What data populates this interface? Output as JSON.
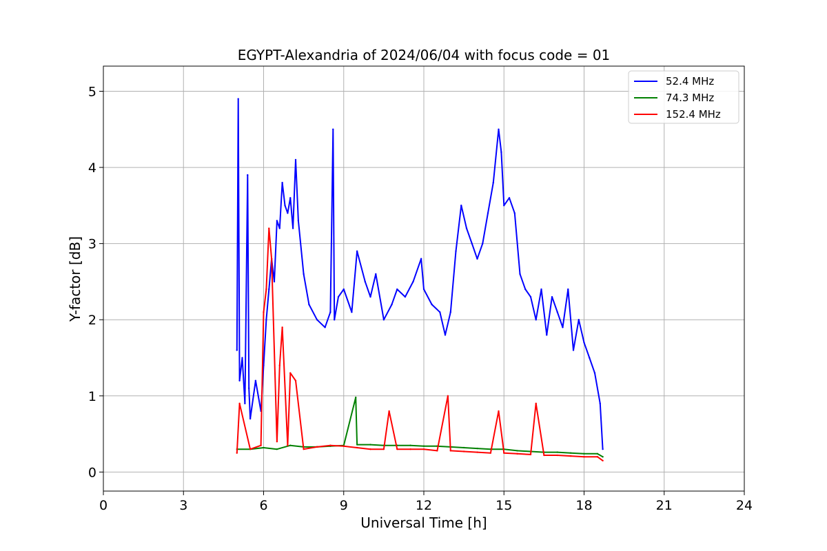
{
  "chart_data": {
    "type": "line",
    "title": "EGYPT-Alexandria of 2024/06/04 with focus code = 01",
    "xlabel": "Universal Time [h]",
    "ylabel": "Y-factor [dB]",
    "xlim": [
      0,
      24
    ],
    "ylim": [
      -0.25,
      5.33
    ],
    "xticks": [
      "0",
      "3",
      "6",
      "9",
      "12",
      "15",
      "18",
      "21",
      "24"
    ],
    "yticks": [
      "0",
      "1",
      "2",
      "3",
      "4",
      "5"
    ],
    "grid": true,
    "legend_position": "top-right",
    "series": [
      {
        "name": " 52.4 MHz",
        "color": "#0000ff",
        "x": [
          5.0,
          5.05,
          5.1,
          5.2,
          5.3,
          5.4,
          5.45,
          5.5,
          5.7,
          5.9,
          6.0,
          6.1,
          6.2,
          6.3,
          6.4,
          6.5,
          6.6,
          6.7,
          6.8,
          6.9,
          7.0,
          7.1,
          7.2,
          7.3,
          7.5,
          7.7,
          8.0,
          8.3,
          8.5,
          8.6,
          8.65,
          8.8,
          9.0,
          9.3,
          9.5,
          9.8,
          10.0,
          10.2,
          10.5,
          10.8,
          11.0,
          11.3,
          11.6,
          11.9,
          12.0,
          12.3,
          12.6,
          12.8,
          13.0,
          13.2,
          13.4,
          13.6,
          13.8,
          14.0,
          14.2,
          14.4,
          14.6,
          14.8,
          14.9,
          15.0,
          15.2,
          15.4,
          15.6,
          15.8,
          16.0,
          16.2,
          16.4,
          16.6,
          16.8,
          17.0,
          17.2,
          17.4,
          17.6,
          17.8,
          18.0,
          18.2,
          18.4,
          18.6,
          18.7
        ],
        "values": [
          1.6,
          4.9,
          1.2,
          1.5,
          0.9,
          3.9,
          1.1,
          0.7,
          1.2,
          0.8,
          1.4,
          2.0,
          2.4,
          2.8,
          2.5,
          3.3,
          3.2,
          3.8,
          3.5,
          3.4,
          3.6,
          3.2,
          4.1,
          3.3,
          2.6,
          2.2,
          2.0,
          1.9,
          2.1,
          4.5,
          2.0,
          2.3,
          2.4,
          2.1,
          2.9,
          2.5,
          2.3,
          2.6,
          2.0,
          2.2,
          2.4,
          2.3,
          2.5,
          2.8,
          2.4,
          2.2,
          2.1,
          1.8,
          2.1,
          2.9,
          3.5,
          3.2,
          3.0,
          2.8,
          3.0,
          3.4,
          3.8,
          4.5,
          4.2,
          3.5,
          3.6,
          3.4,
          2.6,
          2.4,
          2.3,
          2.0,
          2.4,
          1.8,
          2.3,
          2.1,
          1.9,
          2.4,
          1.6,
          2.0,
          1.7,
          1.5,
          1.3,
          0.9,
          0.3
        ]
      },
      {
        "name": " 74.3 MHz",
        "color": "#008000",
        "x": [
          5.0,
          5.5,
          6.0,
          6.5,
          7.0,
          7.5,
          8.0,
          8.5,
          9.0,
          9.45,
          9.5,
          10.0,
          10.5,
          11.0,
          11.5,
          12.0,
          12.5,
          13.0,
          13.5,
          14.0,
          14.5,
          15.0,
          15.5,
          16.0,
          16.5,
          17.0,
          17.5,
          18.0,
          18.5,
          18.7
        ],
        "values": [
          0.3,
          0.3,
          0.32,
          0.3,
          0.35,
          0.33,
          0.33,
          0.34,
          0.35,
          0.98,
          0.36,
          0.36,
          0.35,
          0.35,
          0.35,
          0.34,
          0.34,
          0.33,
          0.32,
          0.31,
          0.3,
          0.3,
          0.28,
          0.27,
          0.26,
          0.26,
          0.25,
          0.24,
          0.24,
          0.2
        ]
      },
      {
        "name": " 152.4 MHz",
        "color": "#ff0000",
        "x": [
          5.0,
          5.1,
          5.5,
          5.9,
          6.0,
          6.1,
          6.2,
          6.3,
          6.5,
          6.6,
          6.7,
          6.9,
          7.0,
          7.2,
          7.5,
          8.0,
          8.5,
          9.0,
          9.5,
          10.0,
          10.5,
          10.7,
          11.0,
          11.5,
          12.0,
          12.5,
          12.9,
          13.0,
          13.5,
          14.0,
          14.5,
          14.8,
          15.0,
          15.5,
          16.0,
          16.2,
          16.5,
          17.0,
          17.5,
          18.0,
          18.5,
          18.7
        ],
        "values": [
          0.25,
          0.9,
          0.3,
          0.35,
          2.1,
          2.4,
          3.2,
          2.8,
          0.4,
          1.4,
          1.9,
          0.35,
          1.3,
          1.2,
          0.3,
          0.33,
          0.35,
          0.34,
          0.32,
          0.3,
          0.3,
          0.8,
          0.3,
          0.3,
          0.3,
          0.28,
          1.0,
          0.28,
          0.27,
          0.26,
          0.25,
          0.8,
          0.25,
          0.24,
          0.23,
          0.9,
          0.22,
          0.22,
          0.21,
          0.2,
          0.2,
          0.15
        ]
      }
    ]
  }
}
